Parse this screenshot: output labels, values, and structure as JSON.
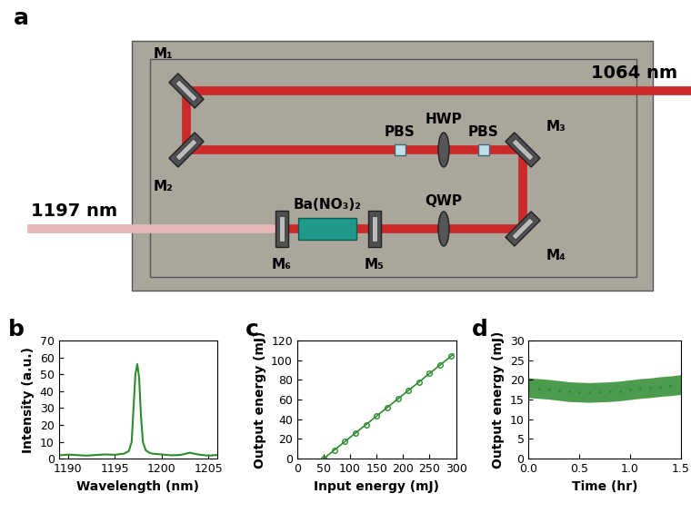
{
  "panel_labels": [
    "a",
    "b",
    "c",
    "d"
  ],
  "diagram": {
    "input": "1064 nm",
    "output": "1197 nm",
    "mirrors": [
      "M₁",
      "M₂",
      "M₃",
      "M₄",
      "M₅",
      "M₆"
    ],
    "components": [
      "PBS",
      "HWP",
      "PBS",
      "QWP",
      "Ba(NO₃)₂"
    ]
  },
  "chart_data": [
    {
      "type": "line",
      "color": "#2e8b2e",
      "x_label": "Wavelength (nm)",
      "y_label": "Intensity (a.u.)",
      "x": [
        1189,
        1190,
        1191,
        1192,
        1193,
        1194,
        1195,
        1196,
        1196.5,
        1196.8,
        1197.0,
        1197.2,
        1197.4,
        1197.6,
        1197.8,
        1198.0,
        1198.3,
        1198.7,
        1199,
        1200,
        1201,
        1202,
        1203,
        1204,
        1205,
        1206
      ],
      "values": [
        2.0,
        2.4,
        2.1,
        1.8,
        2.2,
        2.5,
        2.3,
        3.0,
        4.5,
        10,
        30,
        50,
        56,
        48,
        25,
        10,
        5,
        3.5,
        3.0,
        2.5,
        2.0,
        2.2,
        3.5,
        2.4,
        1.8,
        2.2
      ],
      "xlim": [
        1189,
        1206
      ],
      "xticks": [
        1190,
        1195,
        1200,
        1205
      ],
      "ylim": [
        0,
        70
      ],
      "yticks": [
        0,
        10,
        20,
        30,
        40,
        50,
        60,
        70
      ]
    },
    {
      "type": "scatter",
      "color": "#2e8b2e",
      "x_label": "Input energy (mJ)",
      "y_label": "Output energy (mJ)",
      "series": [
        {
          "type": "scatter",
          "marker": "circle",
          "x": [
            50,
            70,
            90,
            110,
            130,
            150,
            170,
            190,
            210,
            230,
            250,
            270,
            290
          ],
          "values": [
            0,
            8.7,
            17.3,
            26,
            34.7,
            43.3,
            52,
            60.7,
            69.3,
            78,
            86.7,
            95.3,
            104
          ]
        },
        {
          "type": "line",
          "line_style": "solid",
          "x": [
            50,
            295
          ],
          "values": [
            0,
            106
          ]
        }
      ],
      "xlim": [
        0,
        300
      ],
      "xticks": [
        0,
        50,
        100,
        150,
        200,
        250,
        300
      ],
      "ylim": [
        0,
        120
      ],
      "yticks": [
        0,
        20,
        40,
        60,
        80,
        100,
        120
      ]
    },
    {
      "type": "band",
      "color": "#2e8b2e",
      "x_label": "Time (hr)",
      "y_label": "Output energy (mJ)",
      "x": [
        0.0,
        0.1,
        0.2,
        0.3,
        0.4,
        0.5,
        0.6,
        0.7,
        0.8,
        0.9,
        1.0,
        1.1,
        1.2,
        1.3,
        1.4,
        1.5
      ],
      "values": [
        18.0,
        17.8,
        17.6,
        17.3,
        17.0,
        16.9,
        16.8,
        16.9,
        17.0,
        17.2,
        17.5,
        17.8,
        18.0,
        18.3,
        18.5,
        18.8
      ],
      "lower": [
        15.5,
        15.3,
        15.1,
        14.8,
        14.5,
        14.4,
        14.3,
        14.4,
        14.5,
        14.7,
        15.0,
        15.3,
        15.5,
        15.8,
        16.0,
        16.3
      ],
      "upper": [
        20.5,
        20.3,
        20.1,
        19.8,
        19.5,
        19.4,
        19.3,
        19.4,
        19.5,
        19.7,
        20.0,
        20.3,
        20.5,
        20.8,
        21.0,
        21.3
      ],
      "xlim": [
        0.0,
        1.5
      ],
      "xticks": [
        0.0,
        0.5,
        1.0,
        1.5
      ],
      "ylim": [
        0,
        30
      ],
      "yticks": [
        0,
        5,
        10,
        15,
        20,
        25,
        30
      ]
    }
  ]
}
